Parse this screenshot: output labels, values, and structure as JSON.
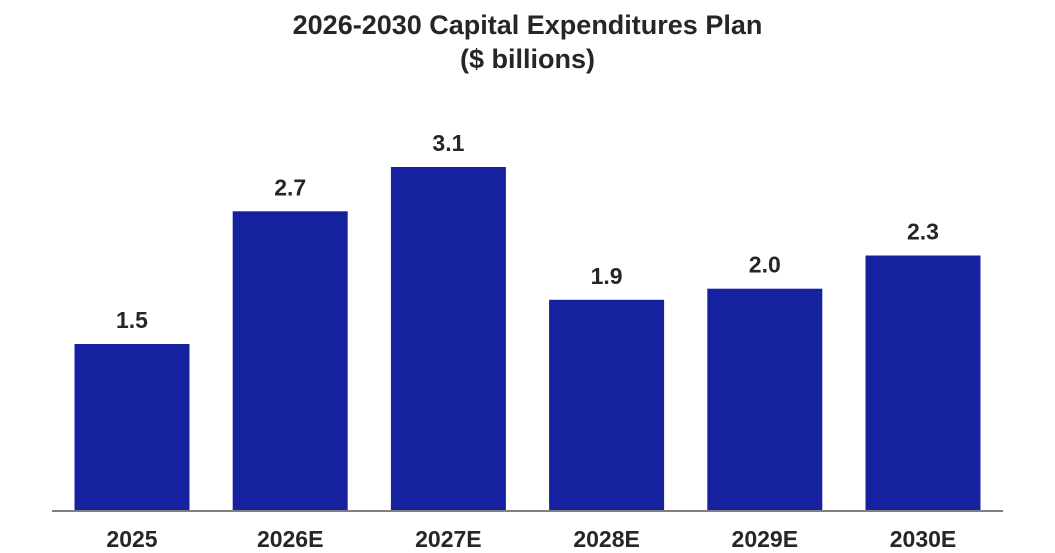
{
  "chart_data": {
    "type": "bar",
    "title": "2026-2030 Capital Expenditures Plan",
    "subtitle": "($ billions)",
    "categories": [
      "2025",
      "2026E",
      "2027E",
      "2028E",
      "2029E",
      "2030E"
    ],
    "values": [
      1.5,
      2.7,
      3.1,
      1.9,
      2.0,
      2.3
    ],
    "data_labels": [
      "1.5",
      "2.7",
      "3.1",
      "1.9",
      "2.0",
      "2.3"
    ],
    "xlabel": "",
    "ylabel": "",
    "ylim": [
      0,
      3.1
    ],
    "grid": false,
    "legend": "none",
    "bar_color": "#1621A0",
    "axis_color": "#7f7f7f",
    "text_color": "#262626"
  }
}
